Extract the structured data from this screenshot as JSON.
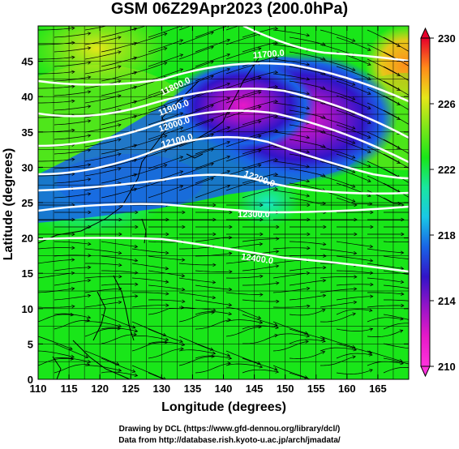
{
  "title": "GSM 06Z29Apr2023 (200.0hPa)",
  "map": {
    "xlabel": "Longitude (degrees)",
    "ylabel": "Latitude (degrees)",
    "x_ticks": [
      "110",
      "115",
      "120",
      "125",
      "130",
      "135",
      "140",
      "145",
      "150",
      "155",
      "160",
      "165"
    ],
    "y_ticks": [
      "0",
      "5",
      "10",
      "15",
      "20",
      "25",
      "30",
      "35",
      "40",
      "45"
    ],
    "xlim": [
      110,
      170
    ],
    "ylim": [
      0,
      50
    ],
    "contours": [
      {
        "label": "11700.0"
      },
      {
        "label": "11800.0"
      },
      {
        "label": "11900.0"
      },
      {
        "label": "12000.0"
      },
      {
        "label": "12100.0"
      },
      {
        "label": "12200.0"
      },
      {
        "label": "12300.0"
      },
      {
        "label": "12400.0"
      }
    ]
  },
  "colorbar": {
    "ticks": [
      "230",
      "226",
      "222",
      "218",
      "214",
      "210"
    ],
    "colors": [
      "#e8002a",
      "#ff8c1a",
      "#e6e619",
      "#7de619",
      "#19e619",
      "#19e6a0",
      "#19c8e6",
      "#1964e6",
      "#3214c8",
      "#9614c8",
      "#e619c8",
      "#ff32dc"
    ]
  },
  "credits": {
    "line1": "Drawing by DCL (https://www.gfd-dennou.org/library/dcl/)",
    "line2": "Data from http://database.rish.kyoto-u.ac.jp/arch/jmadata/"
  }
}
